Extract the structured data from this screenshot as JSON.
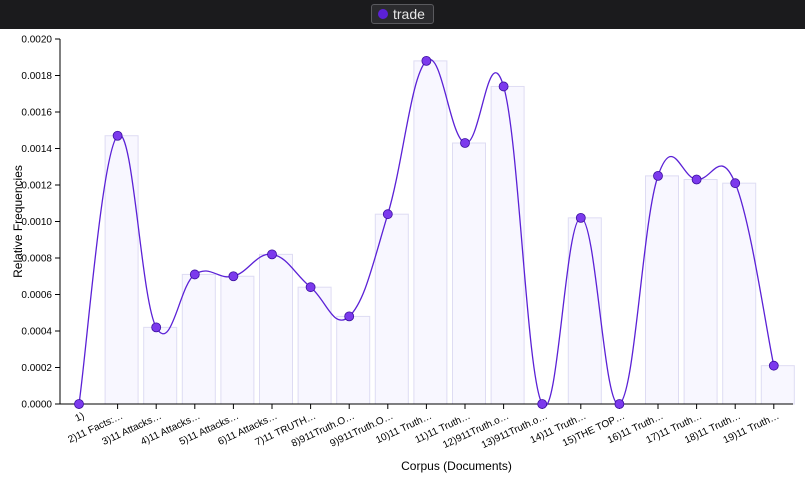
{
  "legend": {
    "label": "trade",
    "color": "#5b21d6"
  },
  "chart_data": {
    "type": "bar",
    "xlabel": "Corpus (Documents)",
    "ylabel": "Relative Frequencies",
    "ylim": [
      0,
      0.002
    ],
    "yticks": [
      "0.0000",
      "0.0002",
      "0.0004",
      "0.0006",
      "0.0008",
      "0.0010",
      "0.0012",
      "0.0014",
      "0.0016",
      "0.0018",
      "0.0020"
    ],
    "categories": [
      "1)",
      "2)11 Facts:…",
      "3)11 Attacks…",
      "4)11 Attacks…",
      "5)11 Attacks…",
      "6)11 Attacks…",
      "7)11 TRUTH…",
      "8)911Truth.O…",
      "9)911Truth.O…",
      "10)11 Truth…",
      "11)11 Truth…",
      "12)911Truth.o…",
      "13)911Truth.o…",
      "14)11 Truth…",
      "15)THE TOP…",
      "16)11 Truth…",
      "17)11 Truth…",
      "18)11 Truth…",
      "19)11 Truth…"
    ],
    "series": [
      {
        "name": "trade",
        "values": [
          0,
          0.00147,
          0.00042,
          0.00071,
          0.0007,
          0.00082,
          0.00064,
          0.00048,
          0.00104,
          0.00188,
          0.00143,
          0.00174,
          0,
          0.00102,
          0,
          0.00125,
          0.00123,
          0.00121,
          0.00021
        ]
      }
    ],
    "colors": {
      "line": "#5b21d6",
      "point": "#7c3aed",
      "bar_fill": "#f8f7ff",
      "bar_stroke": "#dedcf3"
    }
  }
}
